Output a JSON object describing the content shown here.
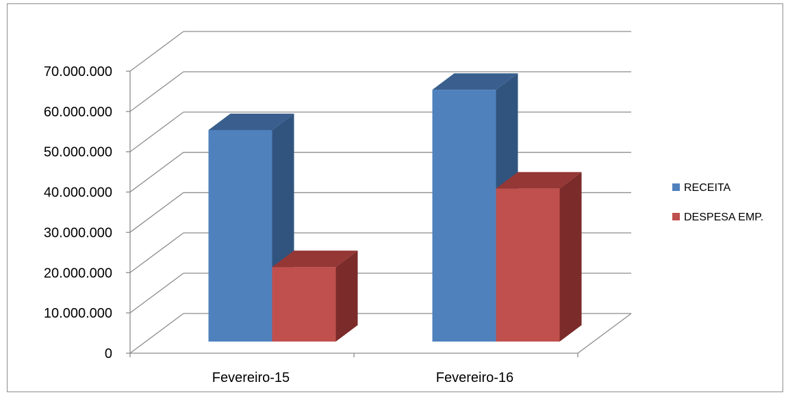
{
  "chart_data": {
    "type": "bar",
    "style": "3d-clustered-column",
    "categories": [
      "Fevereiro-15",
      "Fevereiro-16"
    ],
    "series": [
      {
        "name": "RECEITA",
        "values": [
          52500000,
          62500000
        ],
        "color": "#4f81bd",
        "top_color": "#3a5f8e",
        "side_color": "#31547f"
      },
      {
        "name": "DESPESA EMP.",
        "values": [
          18500000,
          38000000
        ],
        "color": "#c0504d",
        "top_color": "#953735",
        "side_color": "#7b2b2a"
      }
    ],
    "y_ticks": [
      "0",
      "10.000.000",
      "20.000.000",
      "30.000.000",
      "40.000.000",
      "50.000.000",
      "60.000.000",
      "70.000.000"
    ],
    "ylim": [
      0,
      70000000
    ],
    "grid": true,
    "legend_position": "right",
    "title": "",
    "xlabel": "",
    "ylabel": ""
  }
}
